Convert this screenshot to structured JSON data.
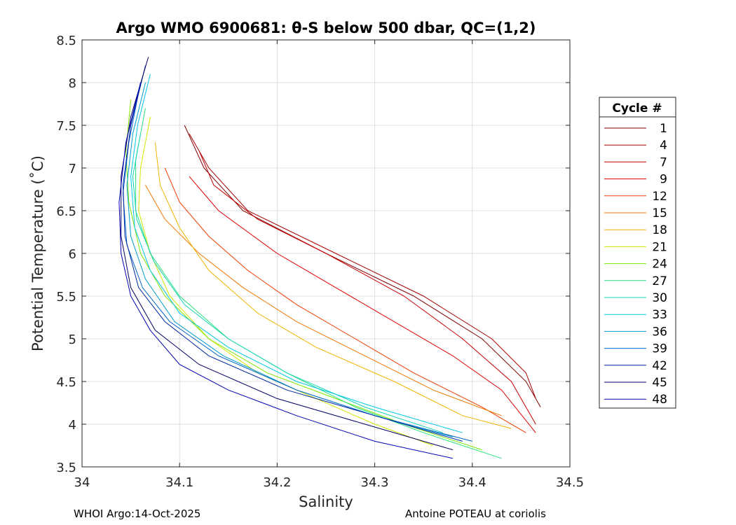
{
  "chart_data": {
    "type": "line",
    "title": "Argo WMO 6900681: θ-S below 500 dbar,  QC=(1,2)",
    "xlabel": "Salinity",
    "ylabel": "Potential Temperature (˚C)",
    "xlim": [
      34.0,
      34.5
    ],
    "ylim": [
      3.5,
      8.5
    ],
    "xticks": [
      34,
      34.1,
      34.2,
      34.3,
      34.4,
      34.5
    ],
    "xtick_labels": [
      "34",
      "34.1",
      "34.2",
      "34.3",
      "34.4",
      "34.5"
    ],
    "yticks": [
      3.5,
      4,
      4.5,
      5,
      5.5,
      6,
      6.5,
      7,
      7.5,
      8,
      8.5
    ],
    "ytick_labels": [
      "3.5",
      "4",
      "4.5",
      "5",
      "5.5",
      "6",
      "6.5",
      "7",
      "7.5",
      "8",
      "8.5"
    ],
    "grid": true,
    "legend_title": "Cycle #",
    "legend_position": "right, outside plot",
    "series": [
      {
        "name": "1",
        "color": "#800000",
        "theta": [
          7.5,
          7.0,
          6.5,
          6.0,
          5.5,
          5.0,
          4.5,
          4.2
        ],
        "salinity": [
          34.105,
          34.125,
          34.165,
          34.25,
          34.34,
          34.41,
          34.455,
          34.47
        ]
      },
      {
        "name": "4",
        "color": "#a30000",
        "theta": [
          7.4,
          7.0,
          6.5,
          6.0,
          5.5,
          5.0,
          4.6,
          4.3
        ],
        "salinity": [
          34.11,
          34.13,
          34.17,
          34.26,
          34.35,
          34.42,
          34.455,
          34.465
        ]
      },
      {
        "name": "7",
        "color": "#c60000",
        "theta": [
          7.2,
          6.8,
          6.4,
          6.0,
          5.5,
          5.0,
          4.5,
          4.0
        ],
        "salinity": [
          34.12,
          34.135,
          34.18,
          34.25,
          34.33,
          34.39,
          34.44,
          34.465
        ]
      },
      {
        "name": "9",
        "color": "#e00000",
        "theta": [
          6.9,
          6.5,
          6.0,
          5.6,
          5.2,
          4.8,
          4.4,
          3.9
        ],
        "salinity": [
          34.11,
          34.14,
          34.2,
          34.26,
          34.32,
          34.38,
          34.43,
          34.465
        ]
      },
      {
        "name": "12",
        "color": "#ef3c00",
        "theta": [
          7.0,
          6.6,
          6.2,
          5.8,
          5.4,
          5.0,
          4.6,
          4.2,
          3.9
        ],
        "salinity": [
          34.085,
          34.1,
          34.13,
          34.17,
          34.22,
          34.28,
          34.34,
          34.41,
          34.455
        ]
      },
      {
        "name": "15",
        "color": "#f07800",
        "theta": [
          6.8,
          6.4,
          6.0,
          5.6,
          5.2,
          4.8,
          4.4,
          4.1
        ],
        "salinity": [
          34.065,
          34.085,
          34.12,
          34.165,
          34.22,
          34.29,
          34.36,
          34.43
        ]
      },
      {
        "name": "18",
        "color": "#f0b400",
        "theta": [
          7.3,
          6.8,
          6.3,
          5.8,
          5.3,
          4.9,
          4.5,
          4.1,
          3.95
        ],
        "salinity": [
          34.075,
          34.08,
          34.1,
          34.13,
          34.18,
          34.24,
          34.32,
          34.39,
          34.44
        ]
      },
      {
        "name": "21",
        "color": "#d2e600",
        "theta": [
          7.6,
          7.0,
          6.5,
          6.0,
          5.5,
          5.0,
          4.6,
          4.3,
          4.0,
          3.75
        ],
        "salinity": [
          34.07,
          34.06,
          34.058,
          34.07,
          34.09,
          34.13,
          34.18,
          34.24,
          34.3,
          34.36
        ]
      },
      {
        "name": "24",
        "color": "#7ee600",
        "theta": [
          7.8,
          7.2,
          6.6,
          6.0,
          5.5,
          5.0,
          4.6,
          4.3,
          4.0,
          3.7
        ],
        "salinity": [
          34.05,
          34.045,
          34.048,
          34.06,
          34.085,
          34.13,
          34.19,
          34.26,
          34.33,
          34.41
        ]
      },
      {
        "name": "27",
        "color": "#28e07e",
        "theta": [
          7.7,
          7.1,
          6.5,
          6.0,
          5.5,
          5.0,
          4.6,
          4.2,
          3.9,
          3.6
        ],
        "salinity": [
          34.065,
          34.055,
          34.055,
          34.07,
          34.1,
          34.15,
          34.21,
          34.28,
          34.35,
          34.43
        ]
      },
      {
        "name": "30",
        "color": "#14d2b4",
        "theta": [
          7.4,
          6.9,
          6.4,
          5.9,
          5.4,
          5.0,
          4.6,
          4.2,
          3.9
        ],
        "salinity": [
          34.06,
          34.052,
          34.056,
          34.074,
          34.105,
          34.15,
          34.21,
          34.29,
          34.37
        ]
      },
      {
        "name": "33",
        "color": "#00c8e6",
        "theta": [
          8.1,
          7.5,
          6.9,
          6.3,
          5.8,
          5.3,
          4.9,
          4.5,
          4.2,
          3.9
        ],
        "salinity": [
          34.07,
          34.057,
          34.05,
          34.054,
          34.07,
          34.1,
          34.15,
          34.22,
          34.3,
          34.39
        ]
      },
      {
        "name": "36",
        "color": "#009ccc",
        "theta": [
          8.0,
          7.4,
          6.8,
          6.2,
          5.7,
          5.2,
          4.8,
          4.4,
          4.1,
          3.85
        ],
        "salinity": [
          34.065,
          34.052,
          34.046,
          34.05,
          34.065,
          34.095,
          34.145,
          34.22,
          34.3,
          34.38
        ]
      },
      {
        "name": "39",
        "color": "#0064c8",
        "theta": [
          8.0,
          7.3,
          6.7,
          6.1,
          5.6,
          5.2,
          4.8,
          4.4,
          4.1,
          3.8
        ],
        "salinity": [
          34.06,
          34.048,
          34.042,
          34.046,
          34.062,
          34.09,
          34.14,
          34.22,
          34.3,
          34.4
        ]
      },
      {
        "name": "42",
        "color": "#0028a0",
        "theta": [
          8.2,
          7.5,
          6.8,
          6.2,
          5.6,
          5.2,
          4.8,
          4.4,
          4.1,
          3.8
        ],
        "salinity": [
          34.065,
          34.05,
          34.042,
          34.044,
          34.058,
          34.085,
          34.13,
          34.21,
          34.3,
          34.39
        ]
      },
      {
        "name": "45",
        "color": "#000064",
        "theta": [
          8.3,
          7.6,
          6.9,
          6.2,
          5.6,
          5.1,
          4.7,
          4.3,
          4.0,
          3.7
        ],
        "salinity": [
          34.068,
          34.05,
          34.04,
          34.04,
          34.05,
          34.075,
          34.12,
          34.2,
          34.29,
          34.38
        ]
      },
      {
        "name": "48",
        "color": "#0000b4",
        "theta": [
          8.0,
          7.3,
          6.6,
          6.0,
          5.5,
          5.1,
          4.7,
          4.4,
          4.1,
          3.8,
          3.6
        ],
        "salinity": [
          34.06,
          34.045,
          34.038,
          34.04,
          34.05,
          34.07,
          34.1,
          34.15,
          34.22,
          34.3,
          34.38
        ]
      }
    ]
  },
  "footer": {
    "left": "WHOI Argo:14-Oct-2025",
    "right": "Antoine POTEAU at coriolis"
  }
}
